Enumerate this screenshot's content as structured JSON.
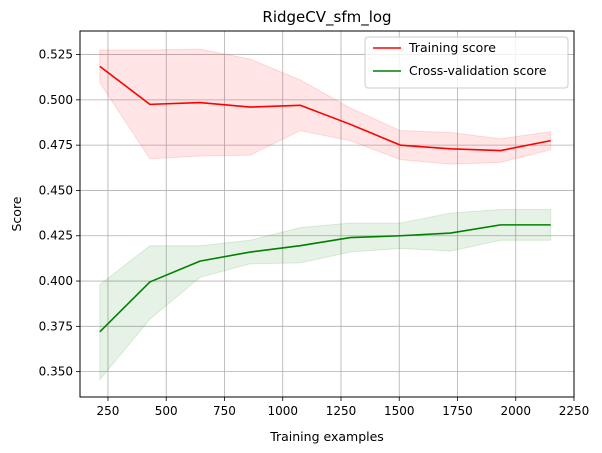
{
  "chart_data": {
    "type": "line",
    "title": "RidgeCV_sfm_log",
    "xlabel": "Training examples",
    "ylabel": "Score",
    "xlim": [
      130,
      2250
    ],
    "ylim": [
      0.336,
      0.538
    ],
    "xticks": [
      250,
      500,
      750,
      1000,
      1250,
      1500,
      1750,
      2000,
      2250
    ],
    "yticks": [
      0.35,
      0.375,
      0.4,
      0.425,
      0.45,
      0.475,
      0.5,
      0.525
    ],
    "xtick_labels": [
      "250",
      "500",
      "750",
      "1000",
      "1250",
      "1500",
      "1750",
      "2000",
      "2250"
    ],
    "ytick_labels": [
      "0.350",
      "0.375",
      "0.400",
      "0.425",
      "0.450",
      "0.475",
      "0.500",
      "0.525"
    ],
    "grid": true,
    "legend_position": "top-right",
    "x": [
      215,
      430,
      645,
      860,
      1075,
      1290,
      1505,
      1720,
      1935,
      2150
    ],
    "series": [
      {
        "name": "Training score",
        "color": "#ff0000",
        "band_color": "#ff0000",
        "values": [
          0.5185,
          0.4975,
          0.4985,
          0.496,
          0.497,
          0.4865,
          0.475,
          0.473,
          0.472,
          0.4775
        ],
        "upper": [
          0.5275,
          0.5275,
          0.528,
          0.5225,
          0.511,
          0.4955,
          0.483,
          0.482,
          0.4785,
          0.4825
        ],
        "lower": [
          0.5095,
          0.4675,
          0.469,
          0.4695,
          0.483,
          0.4775,
          0.467,
          0.4645,
          0.4655,
          0.4725
        ]
      },
      {
        "name": "Cross-validation score",
        "color": "#008000",
        "band_color": "#008000",
        "values": [
          0.372,
          0.3995,
          0.411,
          0.416,
          0.4195,
          0.424,
          0.425,
          0.4265,
          0.431,
          0.431
        ],
        "upper": [
          0.398,
          0.4195,
          0.4195,
          0.4225,
          0.4295,
          0.432,
          0.432,
          0.4375,
          0.4395,
          0.4395
        ],
        "lower": [
          0.3455,
          0.379,
          0.402,
          0.4095,
          0.41,
          0.416,
          0.418,
          0.4165,
          0.4225,
          0.4225
        ]
      }
    ]
  }
}
